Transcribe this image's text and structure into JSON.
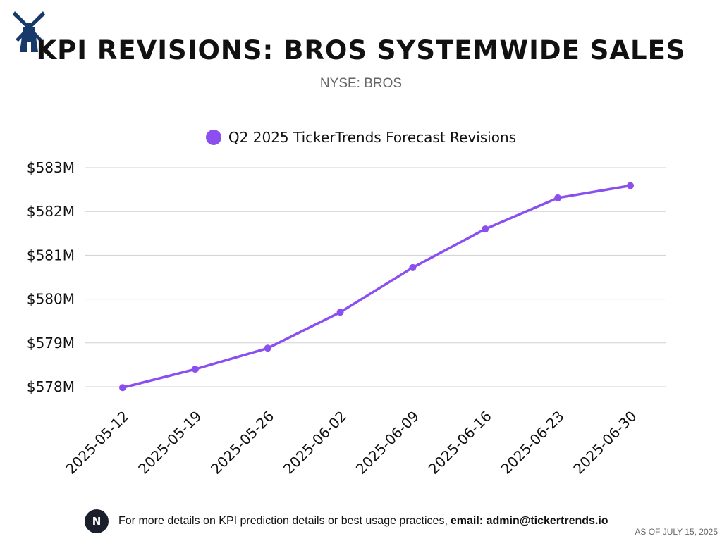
{
  "header": {
    "title": "KPI REVISIONS: BROS SYSTEMWIDE SALES",
    "subtitle": "NYSE: BROS",
    "logo_icon": "windmill-icon"
  },
  "colors": {
    "series": "#8b4ff0",
    "grid": "#d0d0d0",
    "logo": "#173a6b"
  },
  "chart_data": {
    "type": "line",
    "title": "KPI REVISIONS: BROS SYSTEMWIDE SALES",
    "xlabel": "",
    "ylabel": "",
    "categories": [
      "2025-05-12",
      "2025-05-19",
      "2025-05-26",
      "2025-06-02",
      "2025-06-09",
      "2025-06-16",
      "2025-06-23",
      "2025-06-30"
    ],
    "series": [
      {
        "name": "Q2 2025 TickerTrends Forecast Revisions",
        "values": [
          577.98,
          578.4,
          578.88,
          579.7,
          580.72,
          581.6,
          582.31,
          582.59
        ]
      }
    ],
    "yticks": [
      578,
      579,
      580,
      581,
      582,
      583
    ],
    "ytick_labels": [
      "$578M",
      "$579M",
      "$580M",
      "$581M",
      "$582M",
      "$583M"
    ],
    "ylim": [
      578,
      583
    ],
    "grid": true,
    "legend_position": "top-center"
  },
  "footer": {
    "badge": "N",
    "text": "For more details on KPI prediction details or best usage practices,",
    "email": "email: admin@tickertrends.io",
    "as_of": "AS OF JULY 15, 2025"
  }
}
